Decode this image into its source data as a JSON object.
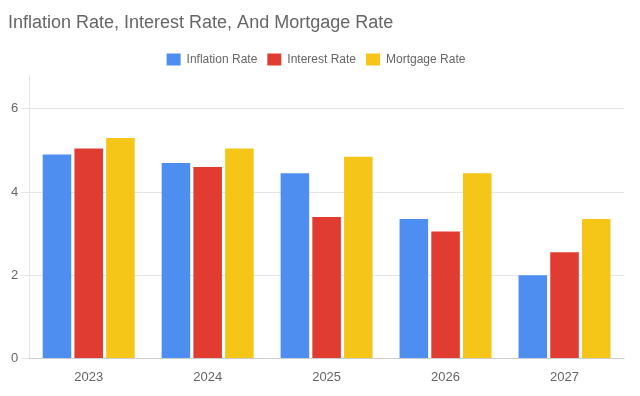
{
  "chart_data": {
    "type": "bar",
    "title": "Inflation Rate, Interest Rate, And Mortgage Rate",
    "categories": [
      "2023",
      "2024",
      "2025",
      "2026",
      "2027"
    ],
    "series": [
      {
        "name": "Inflation Rate",
        "color": "#4d8ef0",
        "values": [
          4.9,
          4.7,
          4.45,
          3.35,
          2.0
        ]
      },
      {
        "name": "Interest Rate",
        "color": "#e03c31",
        "values": [
          5.05,
          4.6,
          3.4,
          3.05,
          2.55
        ]
      },
      {
        "name": "Mortgage Rate",
        "color": "#f5c518",
        "values": [
          5.3,
          5.05,
          4.85,
          4.45,
          3.35
        ]
      }
    ],
    "ylim": [
      0,
      6.8
    ],
    "yticks": [
      0,
      2,
      4,
      6
    ],
    "grid": true,
    "legend": "top"
  }
}
